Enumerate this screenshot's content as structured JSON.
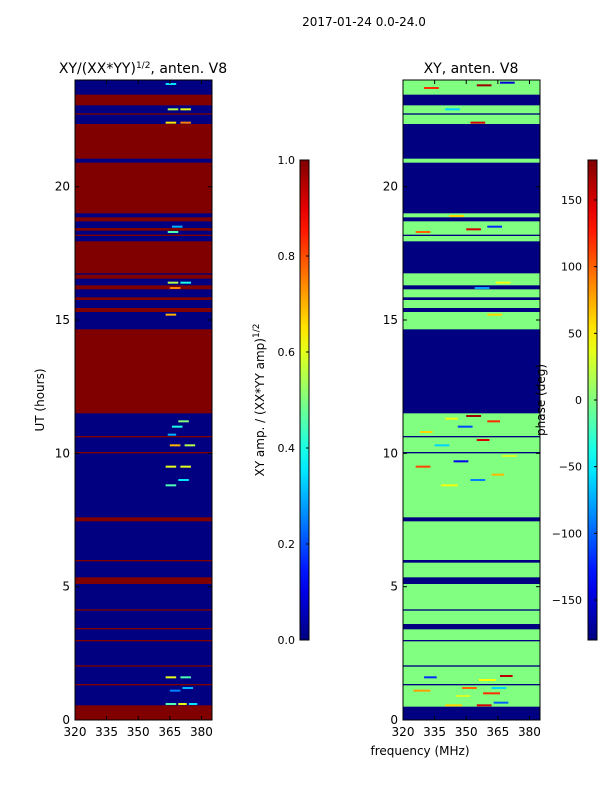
{
  "suptitle": "2017-01-24 0.0-24.0",
  "xlabel": "frequency (MHz)",
  "chart_data": [
    {
      "type": "heatmap",
      "title": "XY/(XX*YY)",
      "title_superscript": "1/2",
      "title_suffix": ", anten. V8",
      "ylabel": "UT (hours)",
      "xlim": [
        320,
        385
      ],
      "ylim": [
        0,
        24
      ],
      "xticks": [
        320,
        335,
        350,
        365,
        380
      ],
      "yticks": [
        0,
        5,
        10,
        15,
        20
      ],
      "base_value": 0.0,
      "colorbar": {
        "label": "XY amp. / (XX*YY amp)",
        "label_superscript": "1/2",
        "range": [
          0.0,
          1.0
        ],
        "ticks": [
          0.0,
          0.2,
          0.4,
          0.6,
          0.8,
          1.0
        ],
        "tick_labels": [
          "0.0",
          "0.2",
          "0.4",
          "0.6",
          "0.8",
          "1.0"
        ],
        "colormap": "jet"
      },
      "bands": [
        {
          "t0": 0.0,
          "t1": 0.55,
          "v": 1.0
        },
        {
          "t0": 1.3,
          "t1": 1.35,
          "v": 1.0
        },
        {
          "t0": 2.0,
          "t1": 2.05,
          "v": 1.0
        },
        {
          "t0": 2.95,
          "t1": 3.0,
          "v": 1.0
        },
        {
          "t0": 3.4,
          "t1": 3.45,
          "v": 1.0
        },
        {
          "t0": 4.1,
          "t1": 4.15,
          "v": 1.0
        },
        {
          "t0": 5.1,
          "t1": 5.35,
          "v": 1.0
        },
        {
          "t0": 5.95,
          "t1": 6.0,
          "v": 1.0
        },
        {
          "t0": 7.45,
          "t1": 7.6,
          "v": 1.0
        },
        {
          "t0": 10.0,
          "t1": 10.05,
          "v": 1.0
        },
        {
          "t0": 10.6,
          "t1": 10.65,
          "v": 1.0
        },
        {
          "t0": 11.5,
          "t1": 14.65,
          "v": 1.0
        },
        {
          "t0": 15.3,
          "t1": 15.45,
          "v": 1.0
        },
        {
          "t0": 15.75,
          "t1": 15.85,
          "v": 1.0
        },
        {
          "t0": 16.15,
          "t1": 16.3,
          "v": 1.0
        },
        {
          "t0": 16.55,
          "t1": 16.7,
          "v": 1.0
        },
        {
          "t0": 16.75,
          "t1": 17.95,
          "v": 1.0
        },
        {
          "t0": 18.15,
          "t1": 18.2,
          "v": 1.0
        },
        {
          "t0": 18.35,
          "t1": 18.45,
          "v": 1.0
        },
        {
          "t0": 18.7,
          "t1": 18.85,
          "v": 1.0
        },
        {
          "t0": 19.0,
          "t1": 20.9,
          "v": 1.0
        },
        {
          "t0": 21.05,
          "t1": 22.35,
          "v": 1.0
        },
        {
          "t0": 22.7,
          "t1": 22.75,
          "v": 1.0
        },
        {
          "t0": 23.05,
          "t1": 23.45,
          "v": 1.0
        }
      ],
      "speckles": [
        {
          "t": 0.6,
          "f0": 363,
          "f1": 368,
          "v": 0.45
        },
        {
          "t": 0.6,
          "f0": 369,
          "f1": 373,
          "v": 0.6
        },
        {
          "t": 0.6,
          "f0": 374,
          "f1": 378,
          "v": 0.35
        },
        {
          "t": 1.1,
          "f0": 365,
          "f1": 370,
          "v": 0.25
        },
        {
          "t": 1.2,
          "f0": 371,
          "f1": 376,
          "v": 0.3
        },
        {
          "t": 1.6,
          "f0": 363,
          "f1": 368,
          "v": 0.6
        },
        {
          "t": 1.6,
          "f0": 370,
          "f1": 375,
          "v": 0.45
        },
        {
          "t": 8.8,
          "f0": 363,
          "f1": 368,
          "v": 0.45
        },
        {
          "t": 9.0,
          "f0": 369,
          "f1": 374,
          "v": 0.35
        },
        {
          "t": 9.5,
          "f0": 363,
          "f1": 368,
          "v": 0.6
        },
        {
          "t": 9.5,
          "f0": 370,
          "f1": 375,
          "v": 0.6
        },
        {
          "t": 10.3,
          "f0": 365,
          "f1": 370,
          "v": 0.7
        },
        {
          "t": 10.3,
          "f0": 372,
          "f1": 377,
          "v": 0.55
        },
        {
          "t": 10.7,
          "f0": 364,
          "f1": 368,
          "v": 0.3
        },
        {
          "t": 11.0,
          "f0": 366,
          "f1": 371,
          "v": 0.4
        },
        {
          "t": 11.2,
          "f0": 369,
          "f1": 374,
          "v": 0.5
        },
        {
          "t": 15.2,
          "f0": 363,
          "f1": 368,
          "v": 0.7
        },
        {
          "t": 16.2,
          "f0": 365,
          "f1": 370,
          "v": 0.75
        },
        {
          "t": 16.4,
          "f0": 364,
          "f1": 369,
          "v": 0.55
        },
        {
          "t": 16.4,
          "f0": 370,
          "f1": 375,
          "v": 0.4
        },
        {
          "t": 18.3,
          "f0": 364,
          "f1": 369,
          "v": 0.45
        },
        {
          "t": 18.5,
          "f0": 366,
          "f1": 371,
          "v": 0.3
        },
        {
          "t": 22.4,
          "f0": 363,
          "f1": 368,
          "v": 0.65
        },
        {
          "t": 22.4,
          "f0": 370,
          "f1": 375,
          "v": 0.75
        },
        {
          "t": 22.9,
          "f0": 364,
          "f1": 369,
          "v": 0.55
        },
        {
          "t": 22.9,
          "f0": 370,
          "f1": 375,
          "v": 0.6
        },
        {
          "t": 23.85,
          "f0": 363,
          "f1": 368,
          "v": 0.35
        }
      ]
    },
    {
      "type": "heatmap",
      "title": "XY, anten. V8",
      "xlim": [
        320,
        385
      ],
      "ylim": [
        0,
        24
      ],
      "xticks": [
        320,
        335,
        350,
        365,
        380
      ],
      "yticks": [
        0,
        5,
        10,
        15,
        20
      ],
      "base_value": 0,
      "colorbar": {
        "label": "phase (deg)",
        "range": [
          -180,
          180
        ],
        "ticks": [
          -150,
          -100,
          -50,
          0,
          50,
          100,
          150
        ],
        "tick_labels": [
          "−150",
          "−100",
          "−50",
          "0",
          "50",
          "100",
          "150"
        ],
        "colormap": "jet"
      },
      "bands": [
        {
          "t0": 0.0,
          "t1": 0.5,
          "v": -180
        },
        {
          "t0": 1.3,
          "t1": 1.35,
          "v": -180
        },
        {
          "t0": 2.0,
          "t1": 2.05,
          "v": -180
        },
        {
          "t0": 2.95,
          "t1": 3.0,
          "v": -180
        },
        {
          "t0": 3.4,
          "t1": 3.6,
          "v": -180
        },
        {
          "t0": 4.1,
          "t1": 4.15,
          "v": -180
        },
        {
          "t0": 5.1,
          "t1": 5.35,
          "v": -180
        },
        {
          "t0": 5.9,
          "t1": 6.0,
          "v": -180
        },
        {
          "t0": 7.45,
          "t1": 7.6,
          "v": -180
        },
        {
          "t0": 10.0,
          "t1": 10.05,
          "v": -180
        },
        {
          "t0": 10.6,
          "t1": 10.65,
          "v": -180
        },
        {
          "t0": 11.5,
          "t1": 14.65,
          "v": -180
        },
        {
          "t0": 15.3,
          "t1": 15.45,
          "v": -180
        },
        {
          "t0": 15.75,
          "t1": 15.85,
          "v": -180
        },
        {
          "t0": 16.15,
          "t1": 16.3,
          "v": -180
        },
        {
          "t0": 16.75,
          "t1": 17.95,
          "v": -180
        },
        {
          "t0": 18.15,
          "t1": 18.2,
          "v": -180
        },
        {
          "t0": 18.7,
          "t1": 18.85,
          "v": -180
        },
        {
          "t0": 19.0,
          "t1": 20.9,
          "v": -180
        },
        {
          "t0": 21.05,
          "t1": 22.35,
          "v": -180
        },
        {
          "t0": 22.7,
          "t1": 22.75,
          "v": -180
        },
        {
          "t0": 23.05,
          "t1": 23.45,
          "v": -180
        }
      ],
      "speckles": [
        {
          "t": 0.55,
          "f0": 340,
          "f1": 348,
          "v": 60
        },
        {
          "t": 0.55,
          "f0": 355,
          "f1": 362,
          "v": 150
        },
        {
          "t": 0.65,
          "f0": 363,
          "f1": 370,
          "v": -100
        },
        {
          "t": 0.9,
          "f0": 345,
          "f1": 352,
          "v": 30
        },
        {
          "t": 1.0,
          "f0": 358,
          "f1": 366,
          "v": 120
        },
        {
          "t": 1.1,
          "f0": 325,
          "f1": 333,
          "v": 80
        },
        {
          "t": 1.2,
          "f0": 348,
          "f1": 355,
          "v": 100
        },
        {
          "t": 1.2,
          "f0": 362,
          "f1": 369,
          "v": -60
        },
        {
          "t": 1.5,
          "f0": 356,
          "f1": 364,
          "v": 45
        },
        {
          "t": 1.6,
          "f0": 330,
          "f1": 336,
          "v": -120
        },
        {
          "t": 1.65,
          "f0": 366,
          "f1": 372,
          "v": 160
        },
        {
          "t": 8.8,
          "f0": 338,
          "f1": 346,
          "v": 40
        },
        {
          "t": 9.0,
          "f0": 352,
          "f1": 359,
          "v": -90
        },
        {
          "t": 9.2,
          "f0": 362,
          "f1": 368,
          "v": 70
        },
        {
          "t": 9.5,
          "f0": 326,
          "f1": 333,
          "v": 110
        },
        {
          "t": 9.7,
          "f0": 344,
          "f1": 351,
          "v": -140
        },
        {
          "t": 9.9,
          "f0": 367,
          "f1": 374,
          "v": 30
        },
        {
          "t": 10.3,
          "f0": 335,
          "f1": 342,
          "v": -60
        },
        {
          "t": 10.5,
          "f0": 355,
          "f1": 361,
          "v": 150
        },
        {
          "t": 10.8,
          "f0": 328,
          "f1": 334,
          "v": 60
        },
        {
          "t": 11.0,
          "f0": 346,
          "f1": 353,
          "v": -110
        },
        {
          "t": 11.2,
          "f0": 360,
          "f1": 366,
          "v": 120
        },
        {
          "t": 11.3,
          "f0": 340,
          "f1": 346,
          "v": 40
        },
        {
          "t": 11.4,
          "f0": 350,
          "f1": 357,
          "v": 170
        },
        {
          "t": 15.2,
          "f0": 360,
          "f1": 367,
          "v": 60
        },
        {
          "t": 16.2,
          "f0": 354,
          "f1": 361,
          "v": -80
        },
        {
          "t": 16.4,
          "f0": 364,
          "f1": 371,
          "v": 40
        },
        {
          "t": 18.3,
          "f0": 326,
          "f1": 333,
          "v": 100
        },
        {
          "t": 18.4,
          "f0": 350,
          "f1": 357,
          "v": 150
        },
        {
          "t": 18.5,
          "f0": 360,
          "f1": 367,
          "v": -120
        },
        {
          "t": 18.9,
          "f0": 342,
          "f1": 349,
          "v": 60
        },
        {
          "t": 22.4,
          "f0": 352,
          "f1": 359,
          "v": 150
        },
        {
          "t": 22.9,
          "f0": 340,
          "f1": 347,
          "v": -60
        },
        {
          "t": 23.7,
          "f0": 330,
          "f1": 337,
          "v": 120
        },
        {
          "t": 23.8,
          "f0": 355,
          "f1": 362,
          "v": 170
        },
        {
          "t": 23.9,
          "f0": 366,
          "f1": 373,
          "v": -150
        }
      ]
    }
  ]
}
